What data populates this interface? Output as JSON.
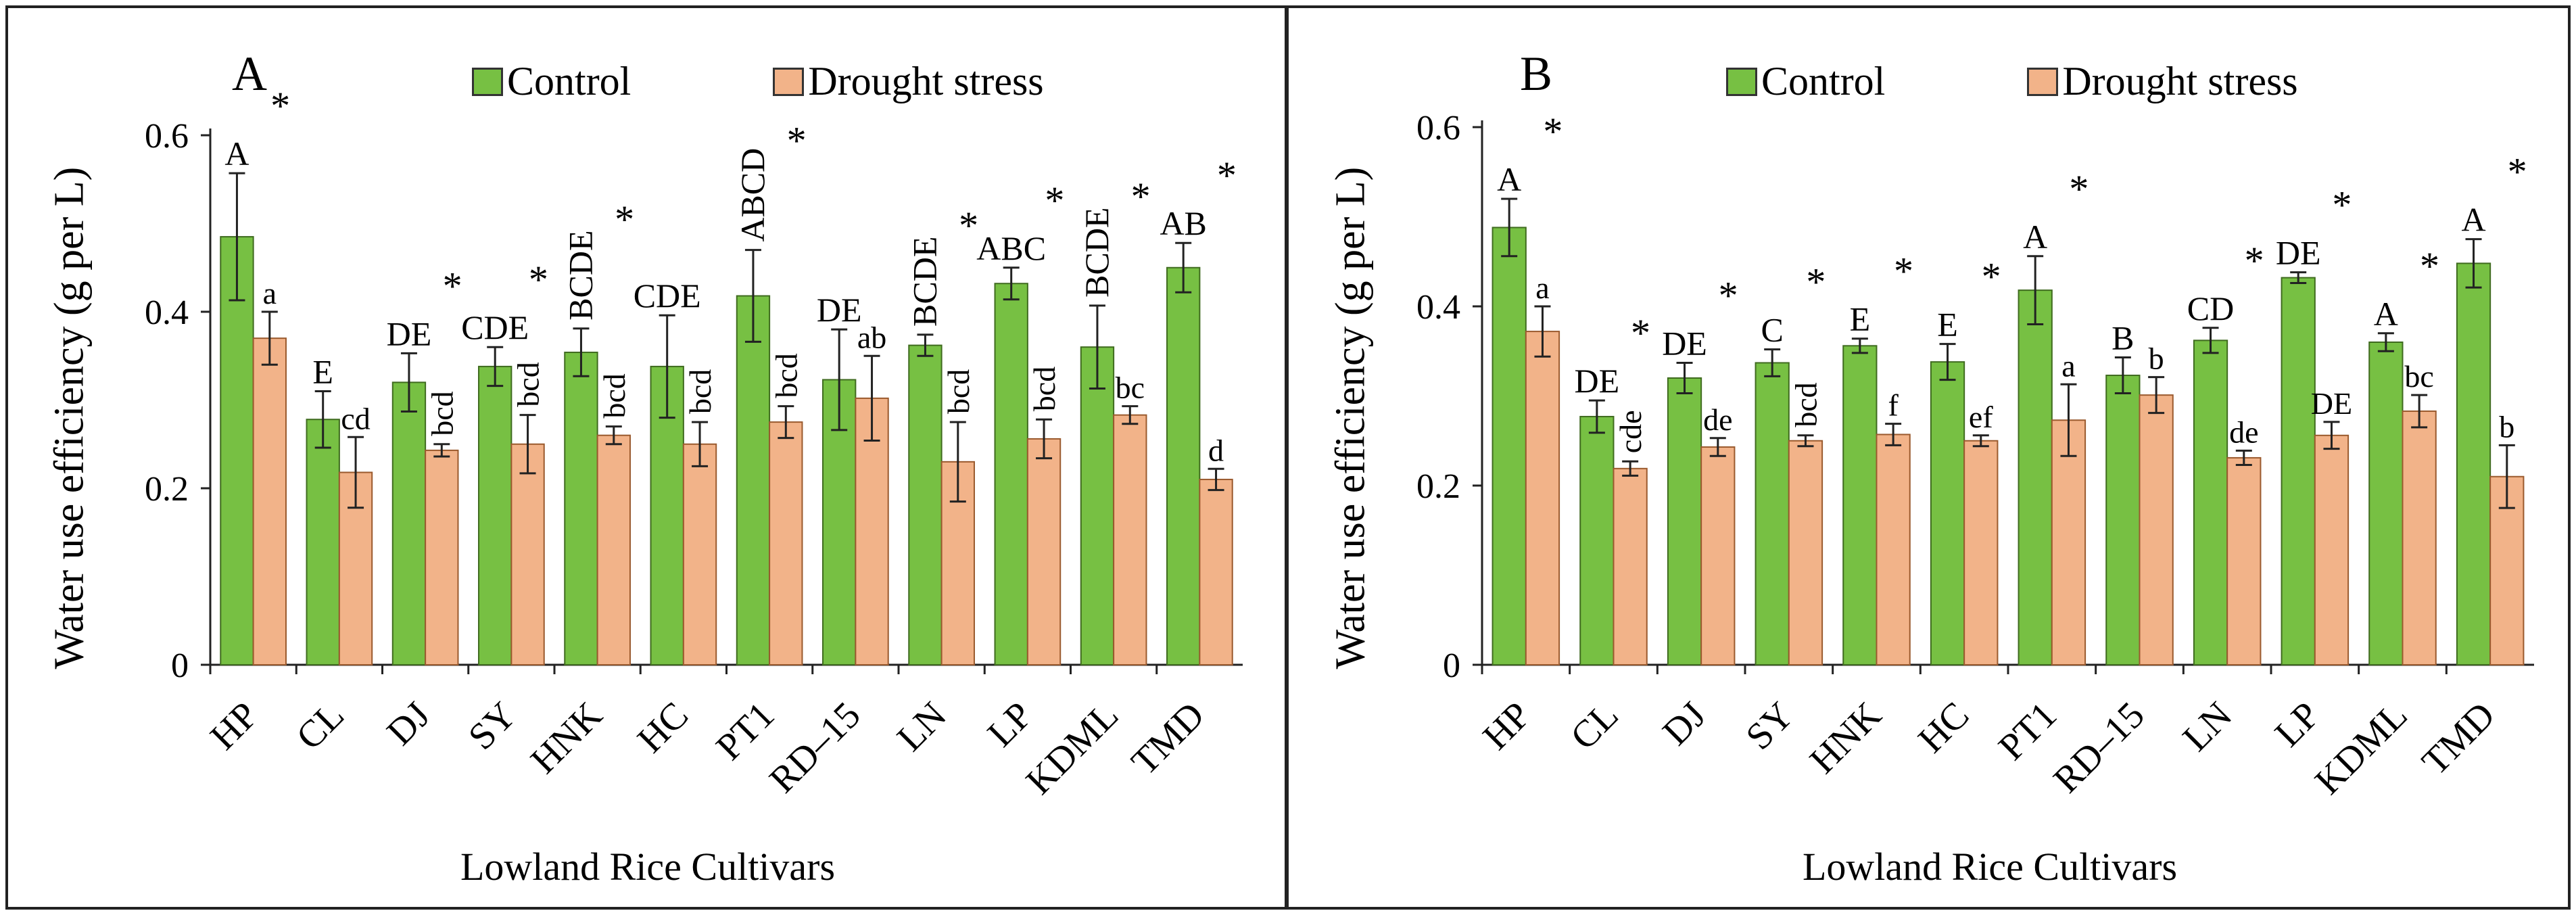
{
  "chart_data": [
    {
      "type": "bar",
      "panel_label": "A",
      "title": "",
      "xlabel": "Lowland Rice Cultivars",
      "ylabel": "Water use efficiency  (g per L)",
      "ylim": [
        0,
        0.6
      ],
      "yticks": [
        "0",
        "0.2",
        "0.4",
        "0.6"
      ],
      "categories": [
        "HP",
        "CL",
        "DJ",
        "SY",
        "HNK",
        "HC",
        "PT1",
        "RD–15",
        "LN",
        "LP",
        "KDML",
        "TMD"
      ],
      "series": [
        {
          "name": "Control",
          "color": "#77c043",
          "values": [
            0.485,
            0.278,
            0.32,
            0.338,
            0.354,
            0.338,
            0.418,
            0.323,
            0.362,
            0.432,
            0.36,
            0.45
          ],
          "errors": [
            0.072,
            0.032,
            0.033,
            0.022,
            0.027,
            0.058,
            0.052,
            0.057,
            0.012,
            0.018,
            0.047,
            0.028
          ],
          "labels": [
            "A",
            "E",
            "DE",
            "CDE",
            "BCDE",
            "CDE",
            "ABCD",
            "DE",
            "BCDE",
            "ABC",
            "BCDE",
            "AB"
          ]
        },
        {
          "name": "Drought stress",
          "color": "#f2b389",
          "values": [
            0.37,
            0.218,
            0.243,
            0.25,
            0.26,
            0.25,
            0.275,
            0.302,
            0.23,
            0.256,
            0.283,
            0.21
          ],
          "errors": [
            0.03,
            0.04,
            0.007,
            0.033,
            0.01,
            0.025,
            0.018,
            0.048,
            0.045,
            0.022,
            0.01,
            0.012
          ],
          "labels": [
            "a",
            "cd",
            "bcd",
            "bcd",
            "bcd",
            "bcd",
            "bcd",
            "ab",
            "bcd",
            "bcd",
            "bc",
            "d"
          ]
        }
      ],
      "significance": [
        true,
        false,
        true,
        true,
        true,
        false,
        true,
        false,
        true,
        true,
        true,
        true
      ],
      "significance_mark": "*"
    },
    {
      "type": "bar",
      "panel_label": "B",
      "title": "",
      "xlabel": "Lowland Rice Cultivars",
      "ylabel": "Water use efficiency  (g per L)",
      "ylim": [
        0,
        0.6
      ],
      "yticks": [
        "0",
        "0.2",
        "0.4",
        "0.6"
      ],
      "categories": [
        "HP",
        "CL",
        "DJ",
        "SY",
        "HNK",
        "HC",
        "PT1",
        "RD–15",
        "LN",
        "LP",
        "KDML",
        "TMD"
      ],
      "series": [
        {
          "name": "Control",
          "color": "#77c043",
          "values": [
            0.488,
            0.277,
            0.32,
            0.337,
            0.356,
            0.338,
            0.418,
            0.323,
            0.362,
            0.432,
            0.36,
            0.448
          ],
          "errors": [
            0.032,
            0.018,
            0.017,
            0.015,
            0.008,
            0.02,
            0.038,
            0.02,
            0.014,
            0.006,
            0.01,
            0.027
          ],
          "labels": [
            "A",
            "DE",
            "DE",
            "C",
            "E",
            "E",
            "A",
            "B",
            "CD",
            "DE",
            "A",
            "A"
          ]
        },
        {
          "name": "Drought stress",
          "color": "#f2b389",
          "values": [
            0.372,
            0.219,
            0.243,
            0.25,
            0.257,
            0.25,
            0.273,
            0.301,
            0.231,
            0.256,
            0.283,
            0.21
          ],
          "errors": [
            0.028,
            0.008,
            0.01,
            0.006,
            0.012,
            0.006,
            0.04,
            0.02,
            0.008,
            0.015,
            0.018,
            0.035
          ],
          "labels": [
            "a",
            "cde",
            "de",
            "bcd",
            "f",
            "ef",
            "a",
            "b",
            "de",
            "DE",
            "bc",
            "b"
          ]
        }
      ],
      "significance": [
        true,
        true,
        true,
        true,
        true,
        true,
        true,
        false,
        true,
        true,
        true,
        true
      ],
      "significance_mark": "*"
    }
  ]
}
